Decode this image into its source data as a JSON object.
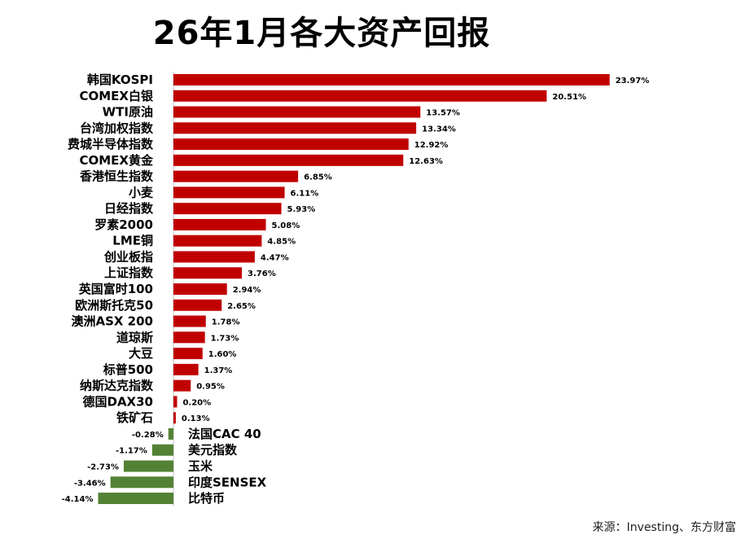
{
  "chart_data": {
    "type": "bar",
    "orientation": "horizontal",
    "title": "26年1月各大资产回报",
    "unit": "%",
    "positive_color": "#C00000",
    "negative_color": "#548235",
    "categories": [
      "韩国KOSPI",
      "COMEX白银",
      "WTI原油",
      "台湾加权指数",
      "费城半导体指数",
      "COMEX黄金",
      "香港恒生指数",
      "小麦",
      "日经指数",
      "罗素2000",
      "LME铜",
      "创业板指",
      "上证指数",
      "英国富时100",
      "欧洲斯托克50",
      "澳洲ASX 200",
      "道琼斯",
      "大豆",
      "标普500",
      "纳斯达克指数",
      "德国DAX30",
      "铁矿石",
      "法国CAC 40",
      "美元指数",
      "玉米",
      "印度SENSEX",
      "比特币"
    ],
    "values": [
      23.97,
      20.51,
      13.57,
      13.34,
      12.92,
      12.63,
      6.85,
      6.11,
      5.93,
      5.08,
      4.85,
      4.47,
      3.76,
      2.94,
      2.65,
      1.78,
      1.73,
      1.6,
      1.37,
      0.95,
      0.2,
      0.13,
      -0.28,
      -1.17,
      -2.73,
      -3.46,
      -4.14
    ],
    "data_labels": [
      "23.97%",
      "20.51%",
      "13.57%",
      "13.34%",
      "12.92%",
      "12.63%",
      "6.85%",
      "6.11%",
      "5.93%",
      "5.08%",
      "4.85%",
      "4.47%",
      "3.76%",
      "2.94%",
      "2.65%",
      "1.78%",
      "1.73%",
      "1.60%",
      "1.37%",
      "0.95%",
      "0.20%",
      "0.13%",
      "-0.28%",
      "-1.17%",
      "-2.73%",
      "-3.46%",
      "-4.14%"
    ],
    "xlabel": "",
    "ylabel": "",
    "grid": false,
    "legend": "none"
  },
  "source": "来源：Investing、东方财富"
}
